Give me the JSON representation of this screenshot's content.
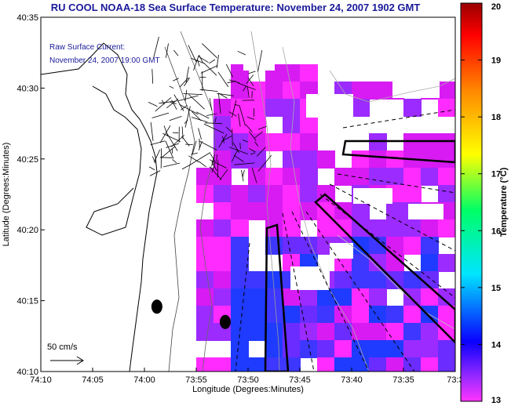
{
  "header": {
    "title": "RU COOL  NOAA-18  Sea Surface Temperature:  November 24, 2007 1902 GMT"
  },
  "annotation": {
    "line1": "Raw Surface Current:",
    "line2": "November 24, 2007 19:00 GMT",
    "scale_label": "50 cm/s"
  },
  "chart_data": {
    "type": "heatmap",
    "title": "RU COOL  NOAA-18  Sea Surface Temperature:  November 24, 2007 1902 GMT",
    "xlabel": "Longitude (Degrees:Minutes)",
    "ylabel": "Latitude (Degrees:Minutes)",
    "x_ticks": [
      "74:10",
      "74:05",
      "74:00",
      "73:55",
      "73:50",
      "73:45",
      "73:40",
      "73:35",
      "73:3"
    ],
    "y_ticks": [
      "40:35",
      "40:30",
      "40:25",
      "40:20",
      "40:15",
      "40:10"
    ],
    "xlim": [
      -74.1667,
      -73.5
    ],
    "ylim": [
      40.1667,
      40.5833
    ],
    "colorbar": {
      "label": "Temperature (°C)",
      "min": 13,
      "max": 20,
      "ticks": [
        "20",
        "19",
        "18",
        "17",
        "16",
        "15",
        "14",
        "13"
      ]
    },
    "sst_colors": [
      "#ff2bff",
      "#d81bf3",
      "#9b2bff",
      "#6a2cff",
      "#3d37ff",
      "#1f3bff"
    ],
    "markers": [
      {
        "lon": -73.98,
        "lat": 40.243
      },
      {
        "lon": -73.87,
        "lat": 40.225
      }
    ]
  }
}
